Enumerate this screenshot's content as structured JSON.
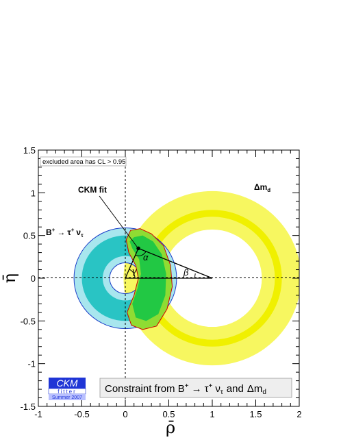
{
  "chart_data": {
    "type": "scatter",
    "xlabel": "ρ̄",
    "ylabel": "η̄",
    "xlim": [
      -1,
      2
    ],
    "ylim": [
      -1.5,
      1.5
    ],
    "x_ticks": [
      "-1",
      "-0.5",
      "0",
      "0.5",
      "1",
      "1.5",
      "2"
    ],
    "y_ticks": [
      "-1.5",
      "-1",
      "-0.5",
      "0",
      "0.5",
      "1",
      "1.5"
    ],
    "grid": "dashed lines at ρ̄ = 0 and η̄ = 0",
    "excluded_note": "excluded area has CL > 0.95",
    "fit_label": "CKM fit",
    "fit_point": {
      "x": 0.15,
      "y": 0.35
    },
    "series": [
      {
        "name": "Δm_d",
        "center": [
          1.0,
          0.0
        ],
        "outer_radius_band": [
          0.8,
          1.02
        ],
        "inner_radius_band": [
          0.57,
          0.72
        ],
        "fill": "#f0f000"
      },
      {
        "name": "B+ → τ+ ντ",
        "center": [
          0.0,
          0.0
        ],
        "outer_radius_band": [
          0.5,
          0.59
        ],
        "inner_radius_band": [
          0.18,
          0.26
        ],
        "fill": "#29c4c4"
      }
    ],
    "angles": {
      "alpha": "α",
      "beta": "β",
      "gamma": "γ"
    },
    "title_box": {
      "prefix": "Constraint from B",
      "sup": "+",
      "arrow": "→",
      "tau": "τ",
      "nu": "ν",
      "nu_sub": "τ",
      "and": "and",
      "dm": "Δm",
      "dm_sub": "d"
    },
    "band_labels": {
      "dmd": {
        "main": "Δm",
        "sub": "d"
      },
      "btau": {
        "B": "B",
        "sup": "+",
        "arrow": "→",
        "tau": "τ",
        "tau_sup": "+",
        "nu": "ν",
        "nu_sub": "τ"
      }
    },
    "logo": {
      "ckm": "CKM",
      "fitter": "fitter",
      "edition": "Summer 2007"
    }
  }
}
